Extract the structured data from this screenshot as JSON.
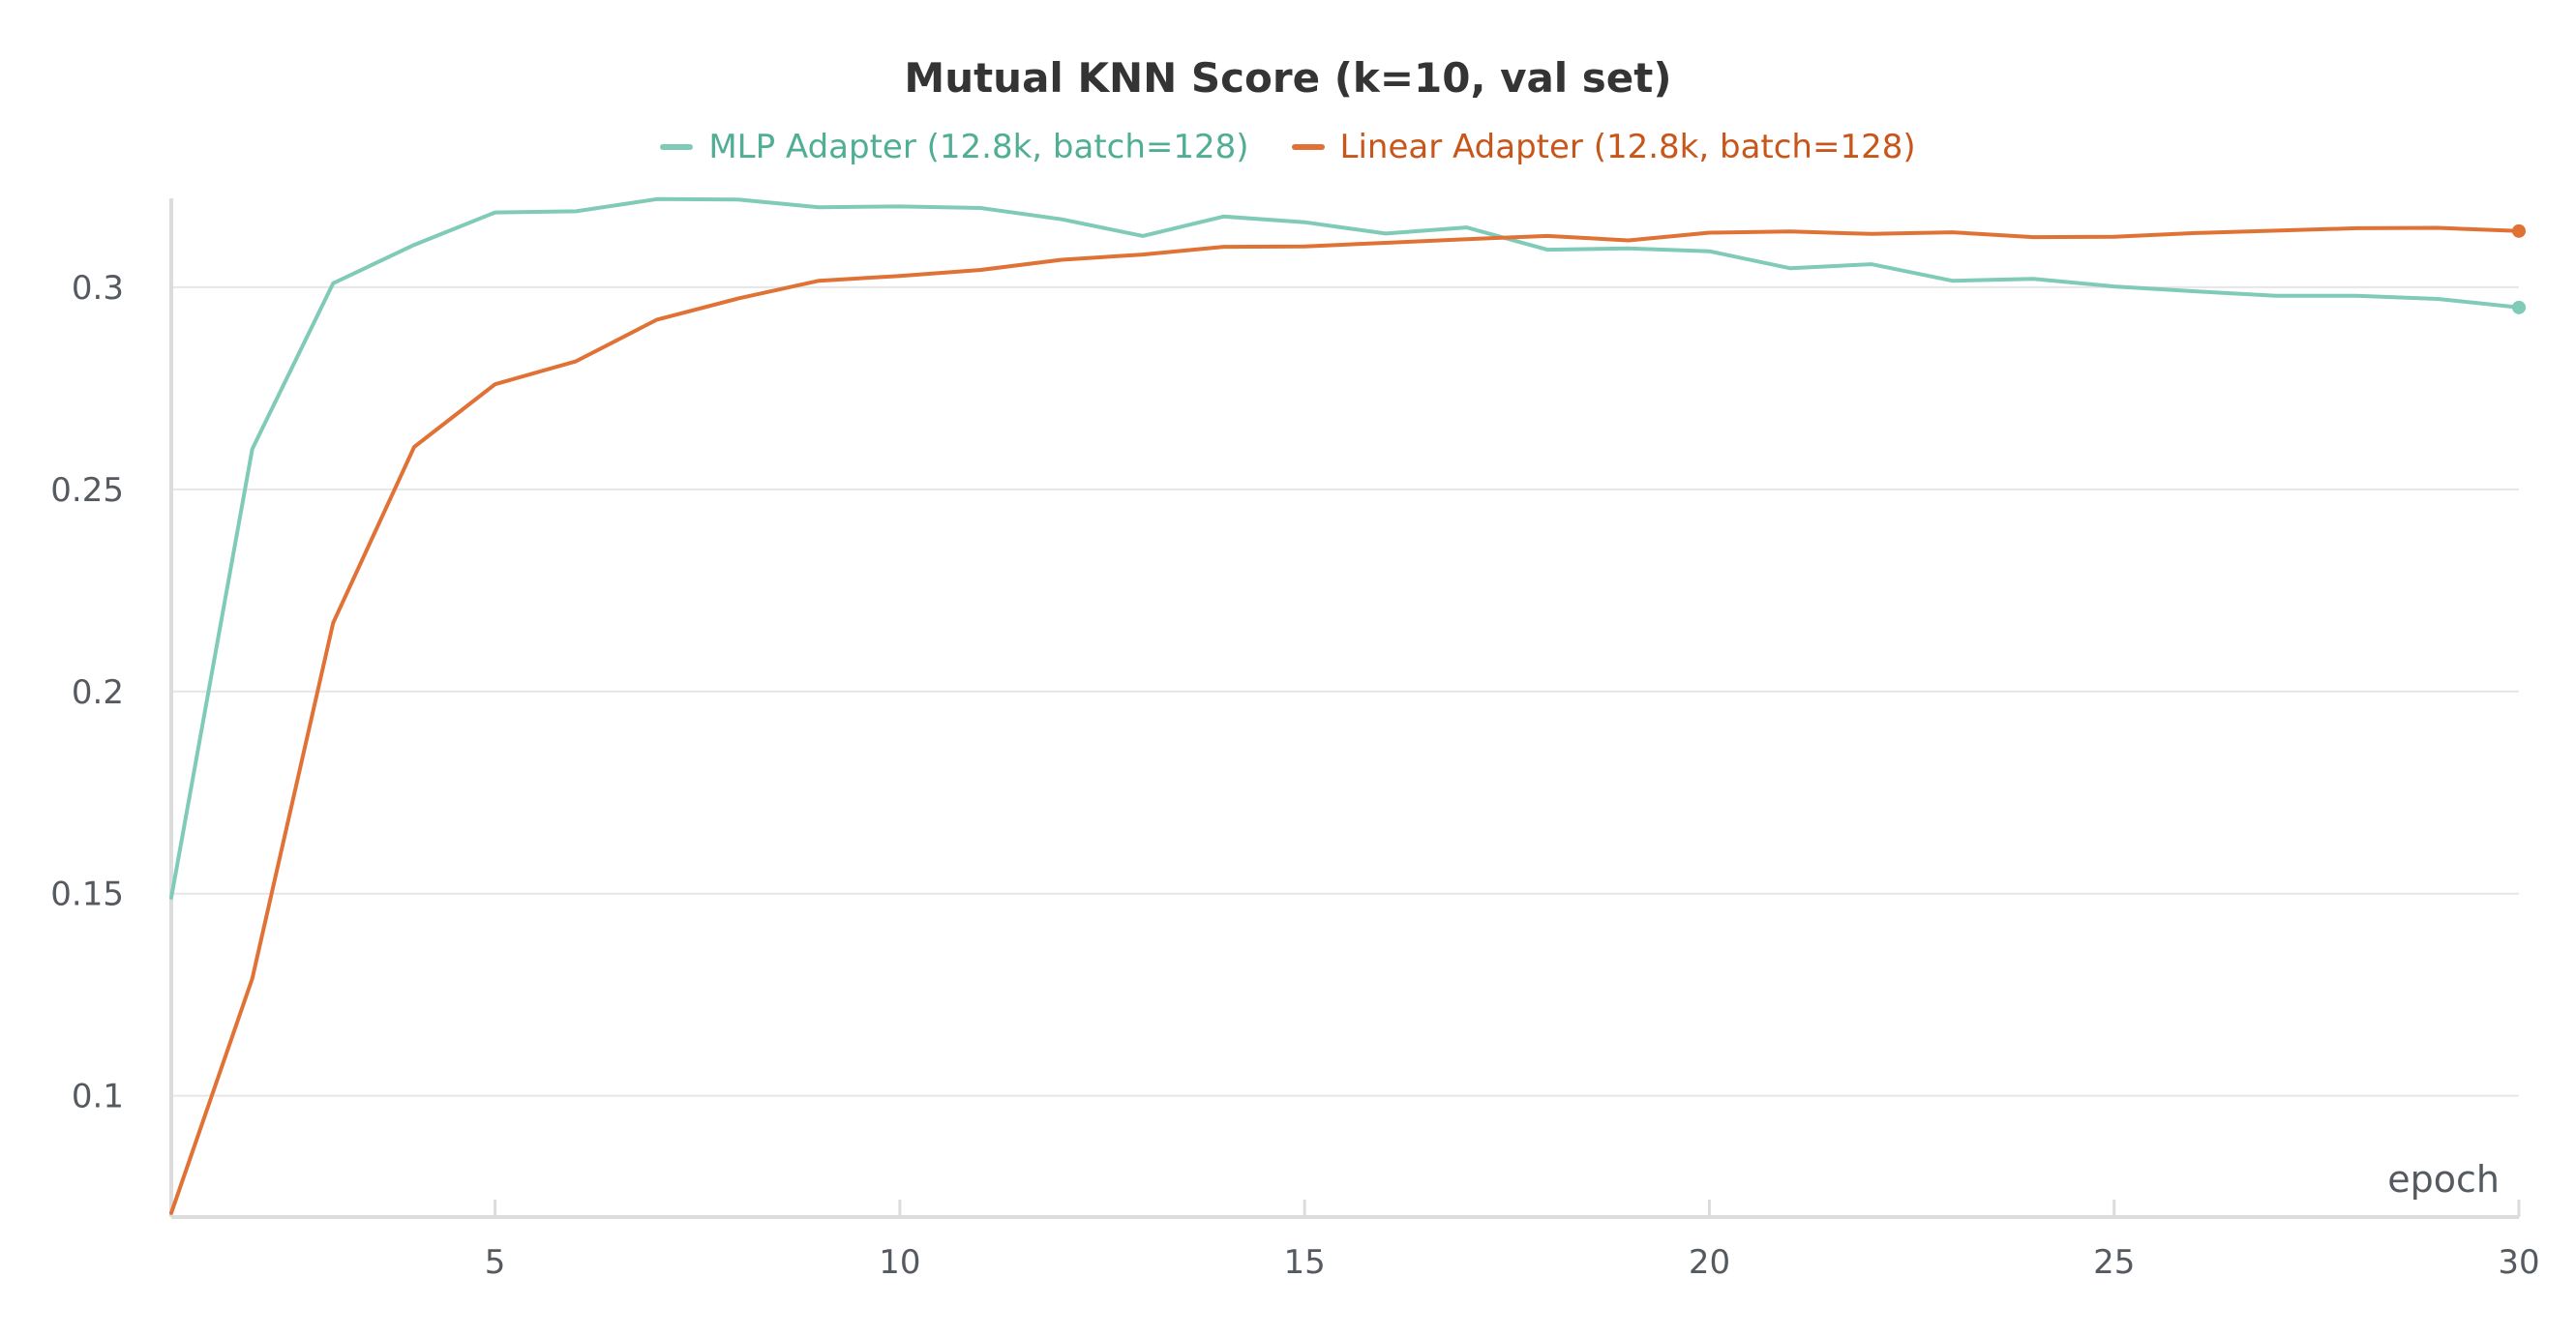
{
  "chart_data": {
    "type": "line",
    "title": "Mutual KNN Score (k=10, val set)",
    "xlabel": "epoch",
    "ylabel": "",
    "xlim": [
      1,
      30
    ],
    "ylim": [
      0.07,
      0.322
    ],
    "x_ticks": [
      5,
      10,
      15,
      20,
      25,
      30
    ],
    "y_ticks": [
      0.1,
      0.15,
      0.2,
      0.25,
      0.3
    ],
    "y_tick_labels": [
      "0.1",
      "0.15",
      "0.2",
      "0.25",
      "0.3"
    ],
    "grid": true,
    "legend_position": "top-center",
    "x": [
      1,
      2,
      3,
      4,
      5,
      6,
      7,
      8,
      9,
      10,
      11,
      12,
      13,
      14,
      15,
      16,
      17,
      18,
      19,
      20,
      21,
      22,
      23,
      24,
      25,
      26,
      27,
      28,
      29,
      30
    ],
    "series": [
      {
        "name": "MLP Adapter (12.8k, batch=128)",
        "color": "#7fcbb7",
        "label_color": "#4fae94",
        "values": [
          0.149,
          0.26,
          0.301,
          0.3105,
          0.3185,
          0.3188,
          0.3218,
          0.3217,
          0.3198,
          0.32,
          0.3196,
          0.3168,
          0.3127,
          0.3175,
          0.3161,
          0.3133,
          0.3148,
          0.3093,
          0.3096,
          0.3089,
          0.3047,
          0.3057,
          0.3016,
          0.3021,
          0.3002,
          0.299,
          0.2979,
          0.2979,
          0.2971,
          0.295
        ]
      },
      {
        "name": "Linear Adapter (12.8k, batch=128)",
        "color": "#e07236",
        "label_color": "#c8561a",
        "values": [
          0.071,
          0.129,
          0.217,
          0.2605,
          0.276,
          0.2817,
          0.292,
          0.2972,
          0.3016,
          0.3028,
          0.3043,
          0.3068,
          0.3081,
          0.31,
          0.3101,
          0.311,
          0.3119,
          0.3127,
          0.3116,
          0.3135,
          0.3138,
          0.3132,
          0.3136,
          0.3124,
          0.3125,
          0.3134,
          0.314,
          0.3146,
          0.3147,
          0.3139
        ]
      }
    ]
  }
}
